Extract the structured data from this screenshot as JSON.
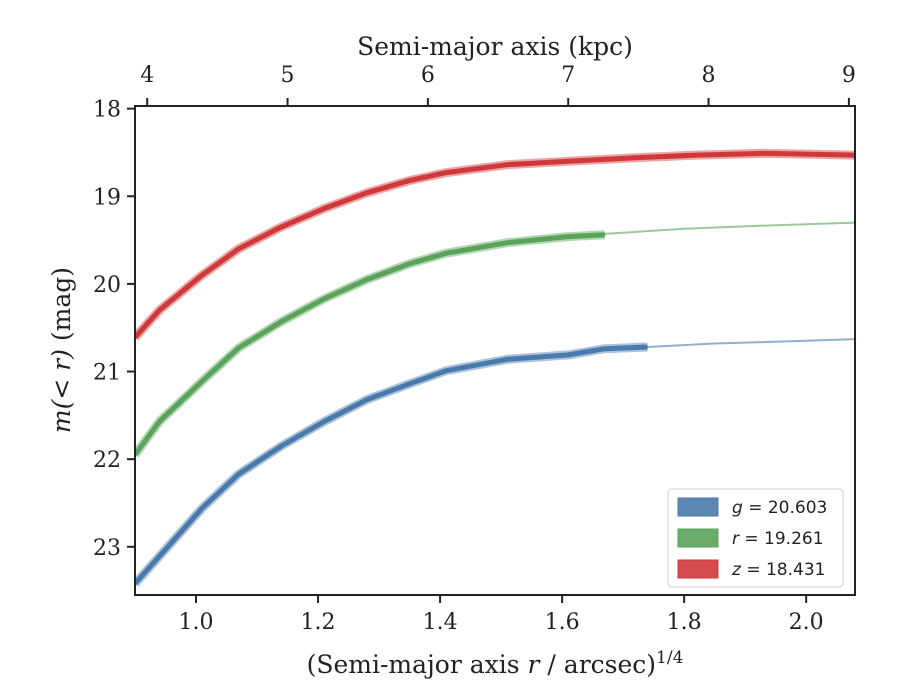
{
  "chart_data": {
    "type": "line",
    "title": "",
    "xlabel": "(Semi-major axis r / arcsec)^1/4",
    "xlabel_main": "(Semi-major axis ",
    "xlabel_var": "r",
    "xlabel_unit": " / arcsec)",
    "xlabel_sup": "1/4",
    "ylabel": "m(< r) (mag)",
    "ylabel_var": "m(< r)",
    "ylabel_unit": " (mag)",
    "top_xlabel": "Semi-major axis (kpc)",
    "xlim": [
      0.9,
      2.08
    ],
    "ylim": [
      23.55,
      17.97
    ],
    "y_inverted": true,
    "xticks": [
      1.0,
      1.2,
      1.4,
      1.6,
      1.8,
      2.0
    ],
    "xtick_labels": [
      "1.0",
      "1.2",
      "1.4",
      "1.6",
      "1.8",
      "2.0"
    ],
    "yticks": [
      18,
      19,
      20,
      21,
      22,
      23
    ],
    "ytick_labels": [
      "18",
      "19",
      "20",
      "21",
      "22",
      "23"
    ],
    "top_xticks_kpc": [
      4,
      5,
      6,
      7,
      8,
      9
    ],
    "top_xtick_labels": [
      "4",
      "5",
      "6",
      "7",
      "8",
      "9"
    ],
    "top_xtick_positions": [
      0.92,
      1.15,
      1.38,
      1.61,
      1.84,
      2.07
    ],
    "grid": false,
    "legend_position": "lower-right",
    "series": [
      {
        "name": "g = 20.603",
        "legend_var": "g",
        "legend_value": "= 20.603",
        "color": "#4a7aab",
        "x": [
          0.9,
          0.95,
          1.01,
          1.07,
          1.14,
          1.21,
          1.28,
          1.35,
          1.41,
          1.51,
          1.61,
          1.67,
          1.74
        ],
        "y": [
          23.42,
          23.03,
          22.56,
          22.17,
          21.85,
          21.57,
          21.32,
          21.14,
          20.99,
          20.86,
          20.81,
          20.74,
          20.72
        ],
        "model_x": [
          1.74,
          1.85,
          1.95,
          2.08
        ],
        "model_y": [
          20.72,
          20.68,
          20.66,
          20.63
        ]
      },
      {
        "name": "r = 19.261",
        "legend_var": "r",
        "legend_value": "= 19.261",
        "color": "#5aa35a",
        "x": [
          0.9,
          0.94,
          1.01,
          1.07,
          1.14,
          1.21,
          1.28,
          1.35,
          1.41,
          1.51,
          1.61,
          1.67
        ],
        "y": [
          21.95,
          21.57,
          21.11,
          20.73,
          20.43,
          20.17,
          19.95,
          19.77,
          19.65,
          19.53,
          19.46,
          19.44
        ],
        "model_x": [
          1.67,
          1.8,
          1.95,
          2.08
        ],
        "model_y": [
          19.43,
          19.37,
          19.33,
          19.3
        ]
      },
      {
        "name": "z = 18.431",
        "legend_var": "z",
        "legend_value": "= 18.431",
        "color": "#d0393b",
        "x": [
          0.9,
          0.94,
          1.01,
          1.07,
          1.14,
          1.21,
          1.28,
          1.35,
          1.41,
          1.51,
          1.61,
          1.72,
          1.82,
          1.93,
          2.08
        ],
        "y": [
          20.61,
          20.3,
          19.9,
          19.6,
          19.35,
          19.14,
          18.96,
          18.82,
          18.73,
          18.64,
          18.6,
          18.56,
          18.53,
          18.51,
          18.53
        ]
      }
    ]
  }
}
